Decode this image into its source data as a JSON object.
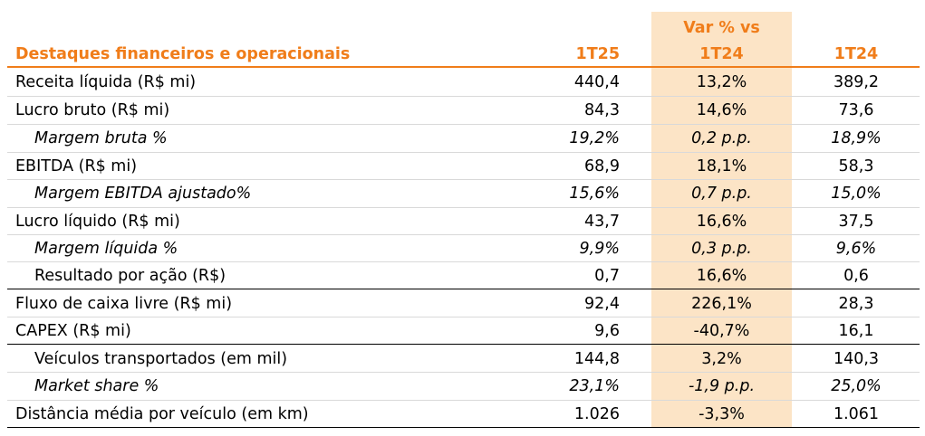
{
  "header": {
    "var_label": "Var % vs",
    "title": "Destaques financeiros e operacionais",
    "col_current": "1T25",
    "col_var": "1T24",
    "col_prev": "1T24"
  },
  "rows": [
    {
      "label": "Receita líquida (R$ mi)",
      "current": "440,4",
      "var": "13,2%",
      "prev": "389,2"
    },
    {
      "label": "Lucro bruto (R$ mi)",
      "current": "84,3",
      "var": "14,6%",
      "prev": "73,6"
    },
    {
      "label": "Margem bruta %",
      "current": "19,2%",
      "var": "0,2 p.p.",
      "prev": "18,9%"
    },
    {
      "label": "EBITDA (R$ mi)",
      "current": "68,9",
      "var": "18,1%",
      "prev": "58,3"
    },
    {
      "label": "Margem EBITDA ajustado%",
      "current": "15,6%",
      "var": "0,7 p.p.",
      "prev": "15,0%"
    },
    {
      "label": "Lucro líquido (R$ mi)",
      "current": "43,7",
      "var": "16,6%",
      "prev": "37,5"
    },
    {
      "label": "Margem líquida %",
      "current": "9,9%",
      "var": "0,3 p.p.",
      "prev": "9,6%"
    },
    {
      "label": "Resultado por ação (R$)",
      "current": "0,7",
      "var": "16,6%",
      "prev": "0,6"
    },
    {
      "label": "Fluxo de caixa livre (R$ mi)",
      "current": "92,4",
      "var": "226,1%",
      "prev": "28,3"
    },
    {
      "label": "CAPEX (R$ mi)",
      "current": "9,6",
      "var": "-40,7%",
      "prev": "16,1"
    },
    {
      "label": "Veículos transportados (em mil)",
      "current": "144,8",
      "var": "3,2%",
      "prev": "140,3"
    },
    {
      "label": "Market share %",
      "current": "23,1%",
      "var": "-1,9 p.p.",
      "prev": "25,0%"
    },
    {
      "label": "Distância média por veículo (em km)",
      "current": "1.026",
      "var": "-3,3%",
      "prev": "1.061"
    }
  ]
}
